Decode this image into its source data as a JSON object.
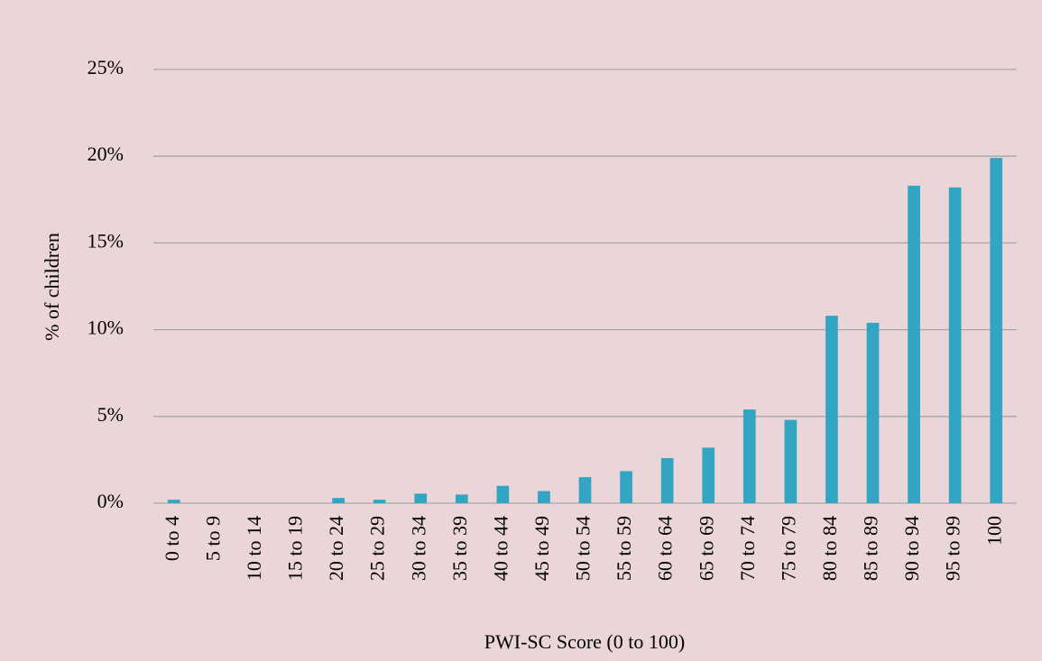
{
  "chart_data": {
    "type": "bar",
    "x_label": "PWI-SC Score (0 to 100)",
    "y_label": "% of children",
    "categories": [
      "0 to 4",
      "5 to 9",
      "10 to 14",
      "15 to 19",
      "20 to 24",
      "25 to 29",
      "30 to 34",
      "35 to 39",
      "40 to 44",
      "45 to 49",
      "50 to 54",
      "55 to 59",
      "60 to 64",
      "65 to 69",
      "70 to 74",
      "75 to 79",
      "80 to 84",
      "85 to 89",
      "90 to 94",
      "95 to 99",
      "100"
    ],
    "values": [
      0.2,
      0,
      0,
      0,
      0.3,
      0.2,
      0.55,
      0.5,
      1.0,
      0.7,
      1.5,
      1.85,
      2.6,
      3.2,
      5.4,
      4.8,
      10.8,
      10.4,
      18.3,
      18.2,
      19.9
    ],
    "color": "#31a5c2",
    "ylim": [
      0,
      25
    ],
    "yticks": [
      {
        "value": 0,
        "label": "0%"
      },
      {
        "value": 5,
        "label": "5%"
      },
      {
        "value": 10,
        "label": "10%"
      },
      {
        "value": 15,
        "label": "15%"
      },
      {
        "value": 20,
        "label": "20%"
      },
      {
        "value": 25,
        "label": "25%"
      }
    ],
    "grid": true
  }
}
